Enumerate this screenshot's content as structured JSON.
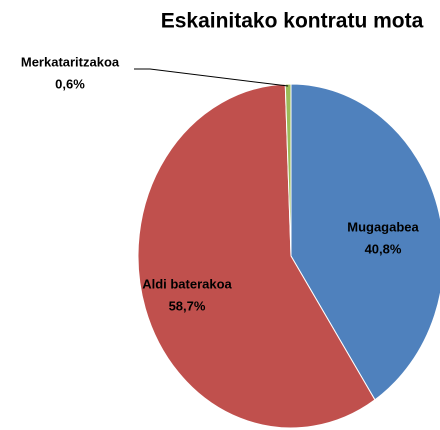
{
  "chart_data": {
    "type": "pie",
    "title": "Eskainitako kontratu mota",
    "categories": [
      "Mugagabea",
      "Aldi baterakoa",
      "Merkataritzakoa"
    ],
    "values": [
      40.8,
      58.7,
      0.6
    ],
    "value_labels": [
      "40,8%",
      "58,7%",
      "0,6%"
    ],
    "colors": [
      "#4f81bd",
      "#c0504d",
      "#9bbb59"
    ]
  }
}
